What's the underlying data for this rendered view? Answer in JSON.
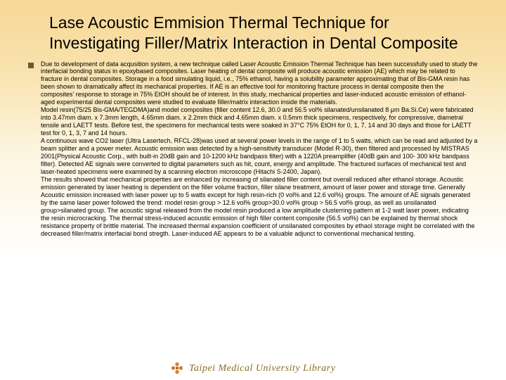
{
  "slide": {
    "background_gradient": [
      "#f7d896",
      "#f8e0a8",
      "#fdf5e0",
      "#ffffff"
    ],
    "title": "Lase Acoustic Emmision Thermal Technique for Investigating Filler/Matrix Interaction in Dental Composite",
    "title_fontsize": 23,
    "title_color": "#000000",
    "bullet_color": "#6b5a2f",
    "body_fontsize": 9,
    "body_color": "#000000",
    "body": "Due to development of data acqusition system, a new technique called Laser Acoustic Emission Thermal Technique has been successfully used to study the interfacial bonding status in epoxybased composites. Laser heating of dental composite will produce acoustic emission (AE) which may be related to fracture in dental composites. Storage in a food simulating liquid, i.e., 75% ethanol, having a solubility parameter approximating that of Bis-GMA resin has been shown to dramatically affect its mechanical properties. If AE is an effective tool for monitoring fracture process in dental composite then the composites&apos; response to storage in 75% EtOH should be of interest. In this study, mechanical properties and laser-induced acoustic emission of ethanol-aged experimental dental composites were studied to evaluate filler/matrix interaction inside the materials.\nModel resin(75/25 Bis-GMA/TEGDMA)and model composites (filler content 12.6, 30.0 and 56.5 vol% silanated/unsilanated 8 μm Ba.Si.Ce) were fabricated into 3.47mm diam. x 7.3mm length, 4.65mm diam. x 2.2mm thick and 4.65mm diam. x 0.5mm thick specimens, respectively, for compressive, diametral tensile and LAETT tests. Before test, the specimens for mechanical tests were soaked in 37°C 75% EtOH for 0, 1, 7, 14 and 30 days and those for LAETT test for 0, 1, 3, 7 and 14 hours.\nA continuous wave CO2 laser (Ultra Lasertech, RFCL-28)was used at several power levels in the range of 1 to 5 watts, which can be read and adjusted by a beam splitter and a power meter. Acoustic emission was detected by a high-sensitivity transducer (Model R-30), then filtered and processed by MISTRAS 2001(Physical Acoustic Corp., with built-in 20dB gain and 10-1200 kHz bandpass filter) with a 1220A preamplifier (40dB gain and 100- 300 kHz bandpass filter). Detected AE signals were converted to digital parameters such as hit, count, energy and amplitude. The fractured surfaces of mechanical test and laser-heated specimens were examined by a scanning electron microscope (Hitachi S-2400, Japan).\nThe results showed that mechanical properties are enhanced by increasing of silanated filler content but overall reduced after ethanol storage. Acoustic emission generated by laser heating is dependent on the filler volume fraction, filler silane treatment, amount of laser power and storage time. Generally Acoustic emission increased with laser power up to 5 watts except for high resin-rich (0 vol% and 12.6 vol%) groups. The amount of AE signals generated by the same laser power followed the trend: model resin group > 12.6 vol% group>30.0 vol% group > 56.5 vol% group, as well as unsilanated group>silanated group. The acoustic signal released from the model resin produced a low amplitude clusterring pattern at 1-2 watt laser power, indicating the resin microcracking. The thermal stress-induced acoustic emission of high filler content composite (56.5 vol%) can be explained by thermal shock resistance property of brittle material. The increased thermal expansion coefficient of unsilanated composites by ethaol storage might be correlated with the decreased filler/matrix interfacial bond stregth. Laser-induced AE appears to be a valuable adjunct to conventional mechanical testing.",
    "footer": {
      "text": "Taipei Medical University Library",
      "color": "#8a6d1f",
      "fontsize": 14,
      "logo_colors": {
        "petals": "#d97a2a",
        "center": "#8a6d1f"
      }
    }
  }
}
